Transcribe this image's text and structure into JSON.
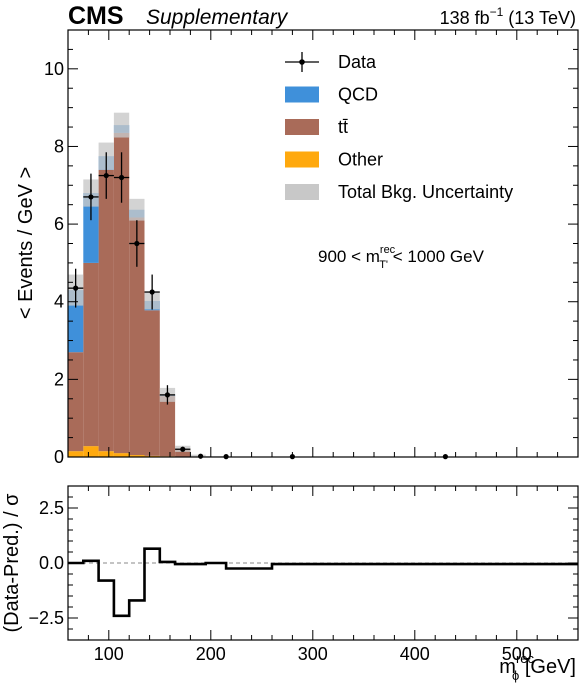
{
  "header": {
    "experiment": "CMS",
    "tag": "Supplementary",
    "lumi_prefix": "138 fb",
    "lumi_exp": "−1",
    "lumi_suffix": " (13 TeV)"
  },
  "annotation": {
    "prefix": "900 < m",
    "sup": "rec",
    "sub": "T'",
    "suffix": " < 1000 GeV"
  },
  "legend": [
    {
      "key": "data",
      "label": "Data"
    },
    {
      "key": "qcd",
      "label": "QCD"
    },
    {
      "key": "ttbar",
      "label": "tt̄"
    },
    {
      "key": "other",
      "label": "Other"
    },
    {
      "key": "unc",
      "label": "Total Bkg. Uncertainty"
    }
  ],
  "colors": {
    "qcd": "#3f90da",
    "ttbar": "#a96b59",
    "other": "#ffa90e",
    "unc": "#c8c8c8",
    "data": "#000000"
  },
  "chart_data": [
    {
      "type": "bar",
      "stacked": true,
      "ylabel": "< Events / GeV >",
      "xlim": [
        60,
        560
      ],
      "ylim": [
        0,
        11
      ],
      "yticks": [
        0,
        2,
        4,
        6,
        8,
        10
      ],
      "bin_edges": [
        60,
        75,
        90,
        105,
        120,
        135,
        150,
        165,
        180,
        195,
        215,
        260,
        300,
        560
      ],
      "series": [
        {
          "name": "Other",
          "values": [
            0.15,
            0.28,
            0.15,
            0.1,
            0.05,
            0.03,
            0.02,
            0.01,
            0.01,
            0.0,
            0.0,
            0.0,
            0.0
          ]
        },
        {
          "name": "tt̄",
          "values": [
            2.55,
            4.72,
            7.25,
            8.25,
            6.12,
            3.75,
            1.55,
            0.2,
            0.0,
            0.0,
            0.0,
            0.0,
            0.0
          ]
        },
        {
          "name": "QCD",
          "values": [
            1.6,
            1.8,
            0.35,
            0.2,
            0.2,
            0.24,
            0.03,
            0.0,
            0.0,
            0.0,
            0.0,
            0.0,
            0.0
          ]
        }
      ],
      "uncertainty": [
        0.4,
        0.35,
        0.35,
        0.32,
        0.28,
        0.22,
        0.18,
        0.08,
        0.05,
        0.02,
        0.01,
        0.0,
        0.0
      ],
      "data": {
        "x": [
          67.5,
          82.5,
          97.5,
          112.5,
          127.5,
          142.5,
          157.5,
          172.5,
          190,
          215,
          280,
          430
        ],
        "y": [
          4.35,
          6.7,
          7.25,
          7.2,
          5.5,
          4.25,
          1.6,
          0.2,
          0.02,
          0.01,
          0.01,
          0.01
        ],
        "yerr": [
          0.5,
          0.6,
          0.6,
          0.65,
          0.6,
          0.45,
          0.25,
          0.06,
          0.0,
          0.0,
          0.0,
          0.0
        ],
        "xerr": [
          7.5,
          7.5,
          7.5,
          7.5,
          7.5,
          7.5,
          7.5,
          7.5,
          0,
          0,
          0,
          0
        ]
      }
    },
    {
      "type": "line",
      "step": true,
      "xlabel_main": "m",
      "xlabel_sub": "ϕ",
      "xlabel_sup": "rec",
      "xlabel_unit": " [GeV]",
      "ylabel": "(Data-Pred.) / σ",
      "xlim": [
        60,
        560
      ],
      "ylim": [
        -3.5,
        3.5
      ],
      "xticks": [
        100,
        200,
        300,
        400,
        500
      ],
      "yticks": [
        2.5,
        0.0,
        -2.5
      ],
      "ytick_labels": [
        "2.5",
        "0.0",
        "−2.5"
      ],
      "bin_edges": [
        60,
        75,
        90,
        105,
        120,
        135,
        150,
        165,
        180,
        195,
        215,
        260,
        300,
        560
      ],
      "values": [
        0.0,
        0.1,
        -0.8,
        -2.4,
        -1.7,
        0.65,
        0.05,
        -0.05,
        -0.05,
        0.0,
        -0.25,
        -0.05,
        -0.05
      ]
    }
  ]
}
